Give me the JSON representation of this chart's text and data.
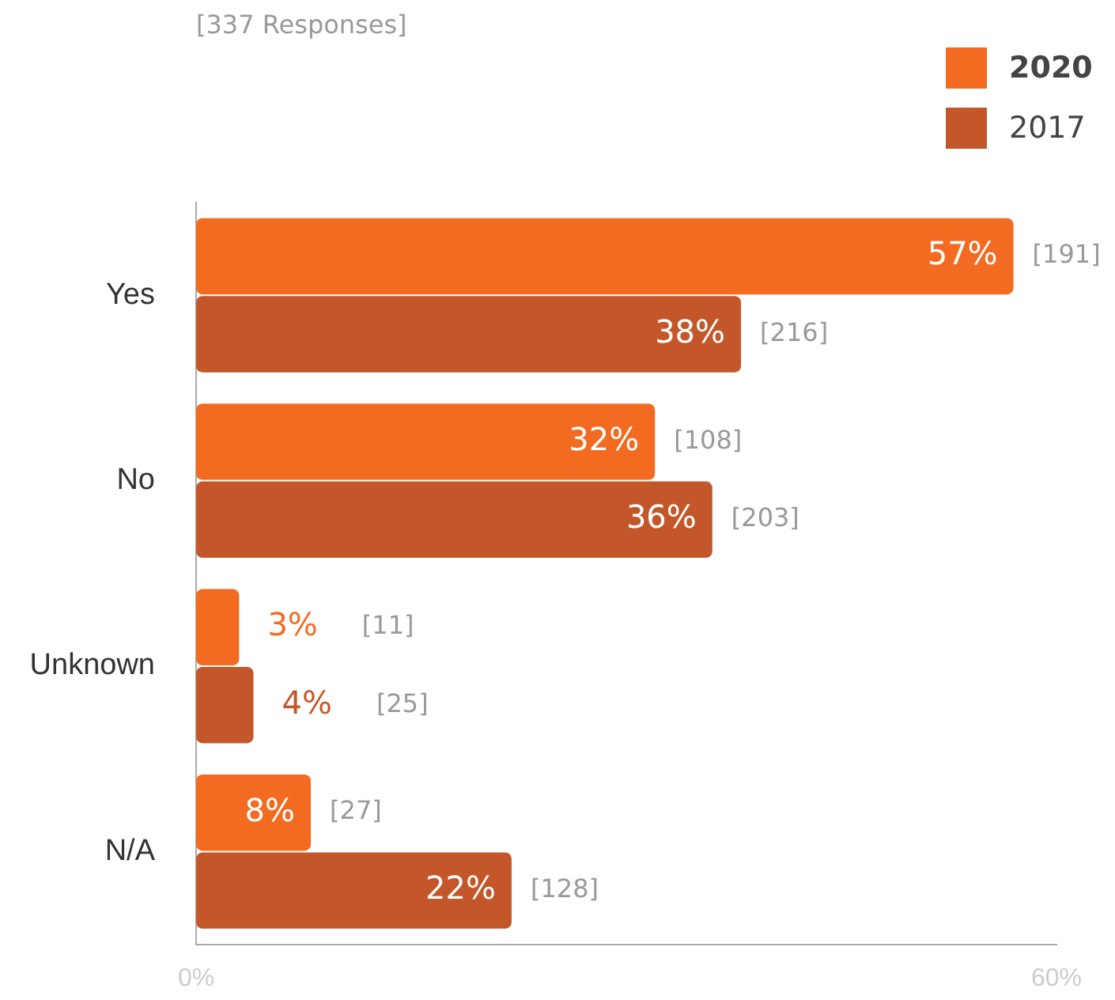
{
  "chart_data": {
    "type": "bar",
    "orientation": "horizontal",
    "subtitle": "[337 Responses]",
    "categories": [
      "Yes",
      "No",
      "Unknown",
      "N/A"
    ],
    "series": [
      {
        "name": "2020",
        "color": "#f26b21",
        "values": [
          57,
          32,
          3,
          8
        ],
        "value_labels": [
          "57%",
          "32%",
          "3%",
          "8%"
        ]
      },
      {
        "name": "2017",
        "color": "#c4572a",
        "values": [
          38,
          36,
          4,
          22
        ],
        "value_labels": [
          "38%",
          "36%",
          "4%",
          "22%"
        ]
      }
    ],
    "xlim": [
      0,
      60
    ],
    "xticks": [
      {
        "value": 0,
        "label": "0%"
      },
      {
        "value": 60,
        "label": "60%"
      }
    ],
    "grid": false,
    "legend": "top right",
    "annotations": [
      "[191]",
      "[216]",
      "[108]",
      "[203]",
      "[11]",
      "[25]",
      "[27]",
      "[128]"
    ]
  }
}
